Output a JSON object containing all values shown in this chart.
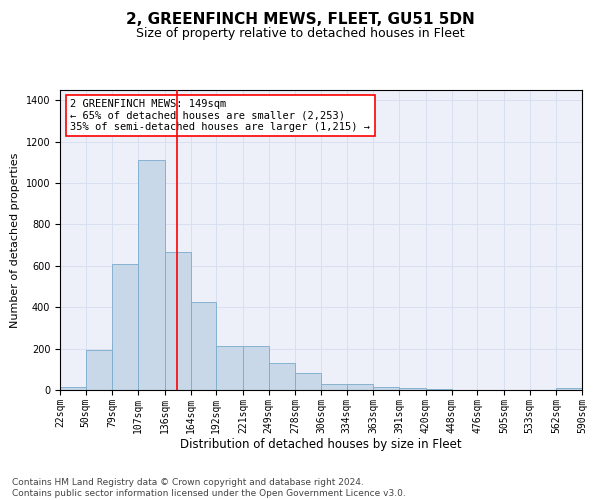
{
  "title": "2, GREENFINCH MEWS, FLEET, GU51 5DN",
  "subtitle": "Size of property relative to detached houses in Fleet",
  "xlabel": "Distribution of detached houses by size in Fleet",
  "ylabel": "Number of detached properties",
  "bar_color": "#c8d8e8",
  "bar_edge_color": "#7aabcc",
  "bar_edge_width": 0.6,
  "vline_x": 149,
  "vline_color": "red",
  "annotation_text": "2 GREENFINCH MEWS: 149sqm\n← 65% of detached houses are smaller (2,253)\n35% of semi-detached houses are larger (1,215) →",
  "annotation_box_color": "white",
  "annotation_border_color": "red",
  "bin_edges": [
    22,
    50,
    79,
    107,
    136,
    164,
    192,
    221,
    249,
    278,
    306,
    334,
    363,
    391,
    420,
    448,
    476,
    505,
    533,
    562,
    590
  ],
  "bin_labels": [
    "22sqm",
    "50sqm",
    "79sqm",
    "107sqm",
    "136sqm",
    "164sqm",
    "192sqm",
    "221sqm",
    "249sqm",
    "278sqm",
    "306sqm",
    "334sqm",
    "363sqm",
    "391sqm",
    "420sqm",
    "448sqm",
    "476sqm",
    "505sqm",
    "533sqm",
    "562sqm",
    "590sqm"
  ],
  "bar_heights": [
    15,
    195,
    610,
    1110,
    665,
    425,
    215,
    215,
    130,
    80,
    30,
    27,
    15,
    12,
    4,
    2,
    1,
    1,
    0,
    8
  ],
  "ylim": [
    0,
    1450
  ],
  "yticks": [
    0,
    200,
    400,
    600,
    800,
    1000,
    1200,
    1400
  ],
  "grid_color": "#d8dff0",
  "bg_color": "#edf0f8",
  "footer_text": "Contains HM Land Registry data © Crown copyright and database right 2024.\nContains public sector information licensed under the Open Government Licence v3.0.",
  "title_fontsize": 11,
  "subtitle_fontsize": 9,
  "xlabel_fontsize": 8.5,
  "ylabel_fontsize": 8,
  "tick_fontsize": 7,
  "annotation_fontsize": 7.5,
  "footer_fontsize": 6.5
}
